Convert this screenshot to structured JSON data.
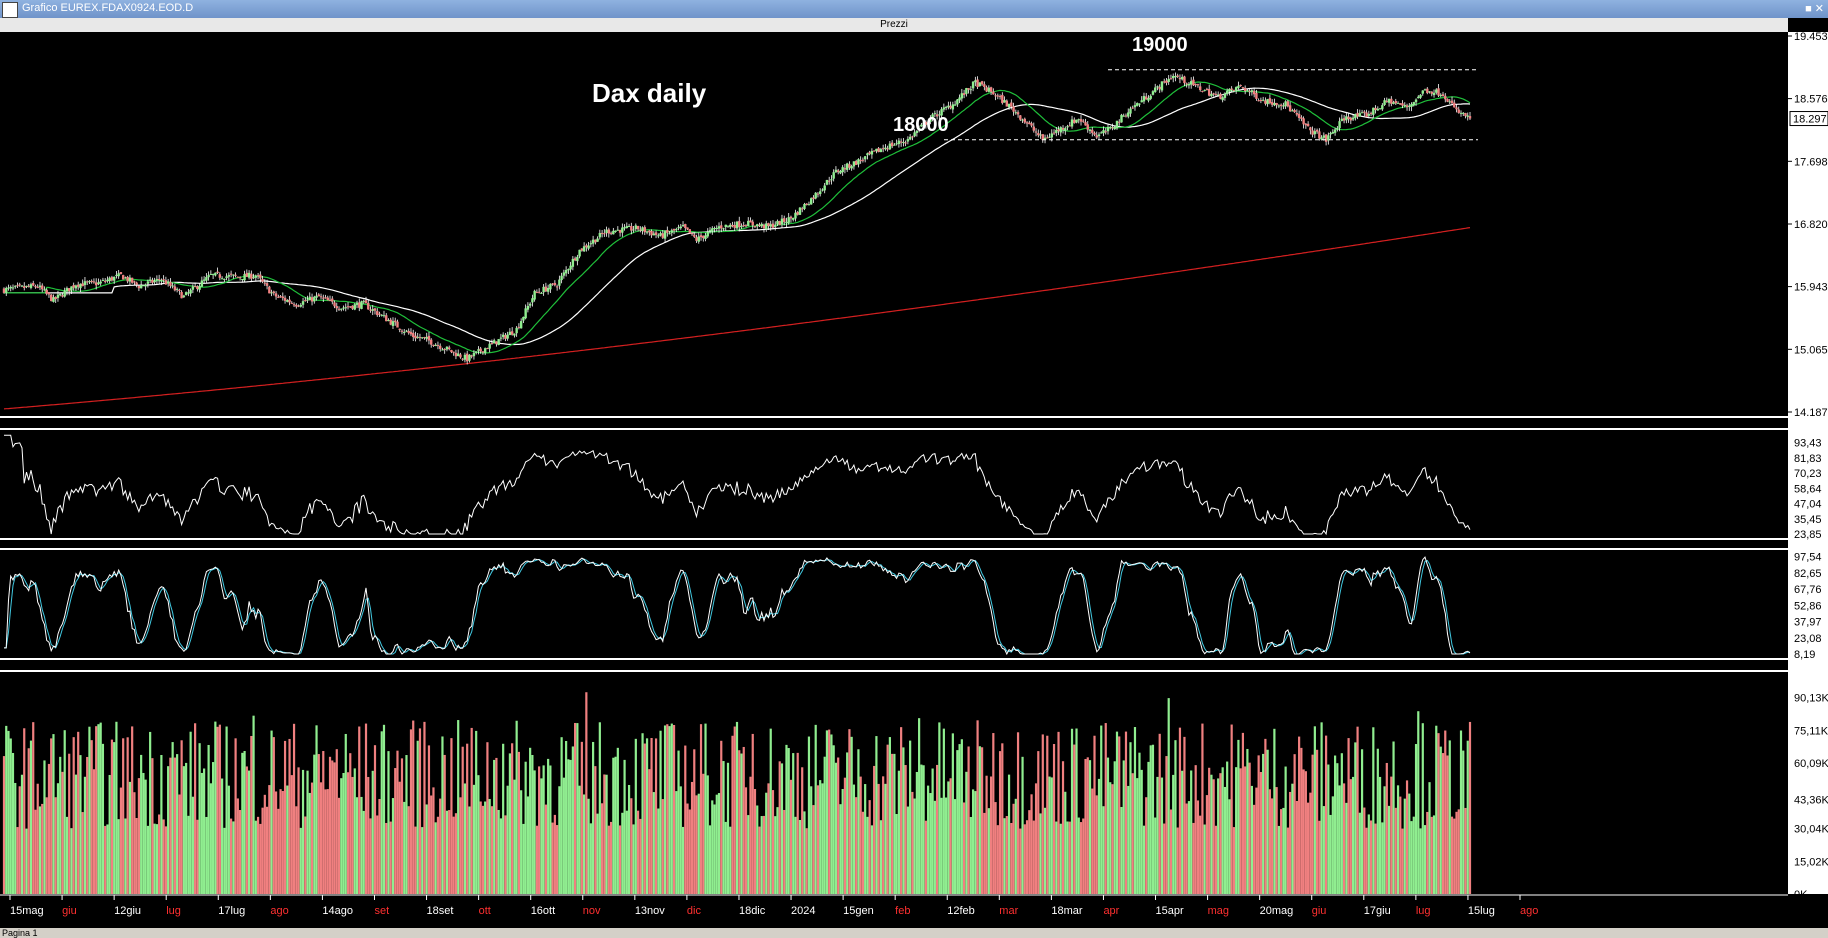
{
  "window": {
    "title": "Grafico EUREX.FDAX0924.EOD.D",
    "pane_title": "Prezzi",
    "footer_tab": "Pagina 1"
  },
  "chart_data": {
    "type": "candlestick",
    "title": "Dax daily",
    "annotations": [
      {
        "text": "19000",
        "level": 18980
      },
      {
        "text": "18000",
        "level": 18000
      }
    ],
    "price_axis": {
      "ylim": [
        14187,
        19453
      ],
      "ticks": [
        19453,
        18576,
        17698,
        16820,
        15943,
        15065,
        14187
      ],
      "last": 18297
    },
    "x_labels": [
      {
        "t": "15mag",
        "red": false
      },
      {
        "t": "giu",
        "red": true
      },
      {
        "t": "12giu",
        "red": false
      },
      {
        "t": "lug",
        "red": true
      },
      {
        "t": "17lug",
        "red": false
      },
      {
        "t": "ago",
        "red": true
      },
      {
        "t": "14ago",
        "red": false
      },
      {
        "t": "set",
        "red": true
      },
      {
        "t": "18set",
        "red": false
      },
      {
        "t": "ott",
        "red": true
      },
      {
        "t": "16ott",
        "red": false
      },
      {
        "t": "nov",
        "red": true
      },
      {
        "t": "13nov",
        "red": false
      },
      {
        "t": "dic",
        "red": true
      },
      {
        "t": "18dic",
        "red": false
      },
      {
        "t": "2024",
        "red": false
      },
      {
        "t": "15gen",
        "red": false
      },
      {
        "t": "feb",
        "red": true
      },
      {
        "t": "12feb",
        "red": false
      },
      {
        "t": "mar",
        "red": true
      },
      {
        "t": "18mar",
        "red": false
      },
      {
        "t": "apr",
        "red": true
      },
      {
        "t": "15apr",
        "red": false
      },
      {
        "t": "mag",
        "red": true
      },
      {
        "t": "20mag",
        "red": false
      },
      {
        "t": "giu",
        "red": true
      },
      {
        "t": "17giu",
        "red": false
      },
      {
        "t": "lug",
        "red": true
      },
      {
        "t": "15lug",
        "red": false
      },
      {
        "t": "ago",
        "red": true
      }
    ],
    "close_anchors": [
      [
        0,
        15900
      ],
      [
        15,
        15950
      ],
      [
        22,
        15750
      ],
      [
        32,
        15980
      ],
      [
        42,
        15990
      ],
      [
        52,
        16100
      ],
      [
        60,
        15950
      ],
      [
        70,
        16050
      ],
      [
        80,
        15800
      ],
      [
        92,
        16100
      ],
      [
        105,
        16080
      ],
      [
        112,
        16100
      ],
      [
        120,
        15820
      ],
      [
        130,
        15700
      ],
      [
        140,
        15800
      ],
      [
        150,
        15650
      ],
      [
        160,
        15700
      ],
      [
        172,
        15450
      ],
      [
        182,
        15250
      ],
      [
        188,
        15200
      ],
      [
        198,
        15050
      ],
      [
        206,
        14930
      ],
      [
        215,
        15100
      ],
      [
        222,
        15230
      ],
      [
        228,
        15350
      ],
      [
        236,
        15850
      ],
      [
        246,
        15980
      ],
      [
        256,
        16450
      ],
      [
        268,
        16720
      ],
      [
        282,
        16760
      ],
      [
        292,
        16650
      ],
      [
        302,
        16770
      ],
      [
        308,
        16600
      ],
      [
        318,
        16780
      ],
      [
        330,
        16830
      ],
      [
        340,
        16780
      ],
      [
        350,
        16900
      ],
      [
        360,
        17200
      ],
      [
        370,
        17550
      ],
      [
        380,
        17700
      ],
      [
        392,
        17900
      ],
      [
        402,
        18000
      ],
      [
        412,
        18300
      ],
      [
        422,
        18500
      ],
      [
        432,
        18800
      ],
      [
        440,
        18650
      ],
      [
        448,
        18450
      ],
      [
        456,
        18200
      ],
      [
        462,
        18000
      ],
      [
        468,
        18120
      ],
      [
        478,
        18300
      ],
      [
        486,
        18050
      ],
      [
        492,
        18150
      ],
      [
        500,
        18400
      ],
      [
        510,
        18650
      ],
      [
        520,
        18900
      ],
      [
        530,
        18750
      ],
      [
        540,
        18600
      ],
      [
        550,
        18750
      ],
      [
        560,
        18550
      ],
      [
        570,
        18500
      ],
      [
        580,
        18150
      ],
      [
        588,
        18000
      ],
      [
        596,
        18300
      ],
      [
        606,
        18350
      ],
      [
        616,
        18550
      ],
      [
        624,
        18450
      ],
      [
        632,
        18700
      ],
      [
        640,
        18650
      ],
      [
        646,
        18400
      ],
      [
        652,
        18297
      ]
    ],
    "rsi_axis": {
      "ylim": [
        23.85,
        100
      ],
      "ticks": [
        93.43,
        81.83,
        70.23,
        58.64,
        47.04,
        35.45,
        23.85
      ]
    },
    "stoch_axis": {
      "ylim": [
        8.19,
        100
      ],
      "ticks": [
        97.54,
        82.65,
        67.76,
        52.86,
        37.97,
        23.08,
        8.19
      ]
    },
    "volume_axis": {
      "ylim": [
        0,
        100000
      ],
      "ticks": [
        "90,13K",
        "75,11K",
        "60,09K",
        "43,36K",
        "30,04K",
        "15,02K",
        "0K"
      ]
    },
    "colors": {
      "up": "#90ee90",
      "down": "#f08080",
      "ma_fast": "#1fbf3a",
      "ma_slow": "#ffffff",
      "ma_long": "#d42020",
      "stoch_k": "#ffffff",
      "stoch_d": "#40c8e0",
      "rsi": "#ffffff"
    }
  }
}
